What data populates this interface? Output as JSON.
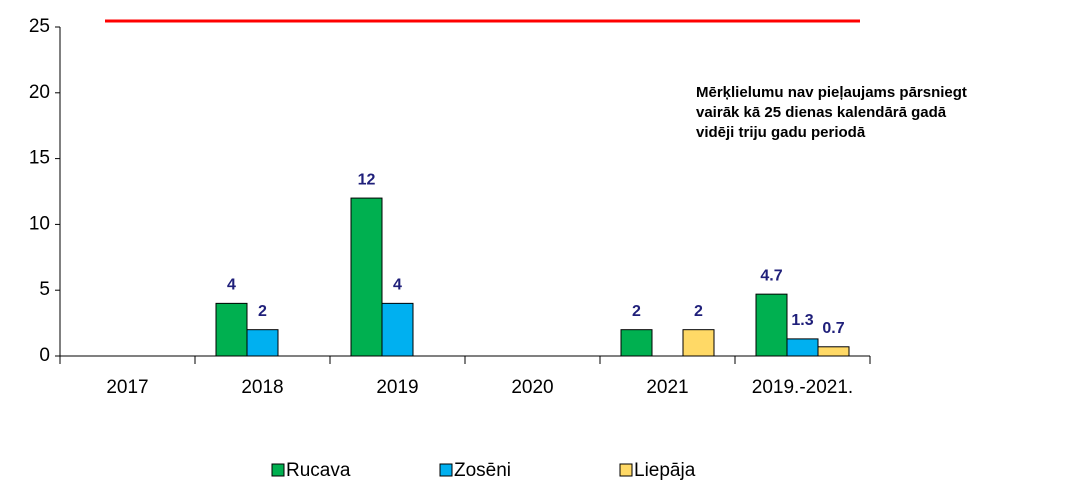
{
  "chart_data": {
    "type": "bar",
    "categories": [
      "2017",
      "2018",
      "2019",
      "2020",
      "2021",
      "2019.-2021."
    ],
    "series": [
      {
        "name": "Rucava",
        "color": "#00b050",
        "values": [
          null,
          4,
          12,
          null,
          2,
          4.7
        ]
      },
      {
        "name": "Zosēni",
        "color": "#00b0f0",
        "values": [
          null,
          2,
          4,
          null,
          null,
          1.3
        ]
      },
      {
        "name": "Liepāja",
        "color": "#ffd966",
        "values": [
          null,
          null,
          null,
          null,
          2,
          0.7
        ]
      }
    ],
    "ylim": [
      0,
      25
    ],
    "yticks": [
      0,
      5,
      10,
      15,
      20,
      25
    ],
    "threshold": {
      "value": 25,
      "color": "#ff0000"
    },
    "annotation": [
      "Mērķlielumu nav pieļaujams pārsniegt",
      "vairāk kā 25 dienas kalendārā gadā",
      "vidēji triju gadu periodā"
    ],
    "legend": "bottom"
  }
}
